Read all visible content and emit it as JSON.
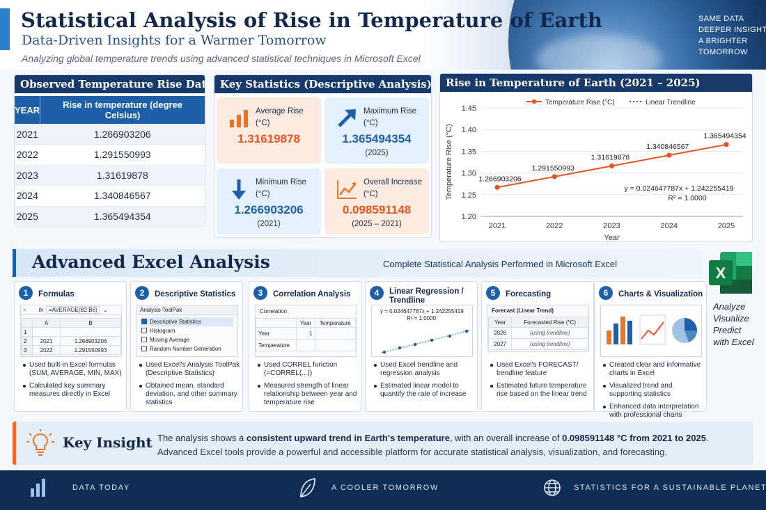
{
  "header": {
    "title": "Statistical Analysis of Rise in Temperature of Earth",
    "subtitle": "Data-Driven Insights for a Warmer Tomorrow",
    "tagline": "Analyzing global temperature trends using advanced statistical techniques in Microsoft Excel",
    "slogan": [
      "SAME DATA",
      "DEEPER INSIGHTS",
      "A BRIGHTER",
      "TOMORROW"
    ]
  },
  "observed": {
    "title": "Observed Temperature Rise Data",
    "col_year": "YEAR",
    "col_rise": "Rise in temperature (degree Celsius)",
    "rows": [
      {
        "year": "2021",
        "value": "1.266903206"
      },
      {
        "year": "2022",
        "value": "1.291550993"
      },
      {
        "year": "2023",
        "value": "1.31619878"
      },
      {
        "year": "2024",
        "value": "1.340846567"
      },
      {
        "year": "2025",
        "value": "1.365494354"
      }
    ]
  },
  "key_stats": {
    "title": "Key Statistics (Descriptive Analysis)",
    "average": {
      "label1": "Average Rise",
      "label2": "(°C)",
      "value": "1.31619878",
      "color": "#e8541e"
    },
    "maximum": {
      "label1": "Maximum Rise",
      "label2": "(°C)",
      "value": "1.365494354",
      "sub": "(2025)",
      "color": "#1d5fa8"
    },
    "minimum": {
      "label1": "Minimum Rise",
      "label2": "(°C)",
      "value": "1.266903206",
      "sub": "(2021)",
      "color": "#1d5fa8"
    },
    "increase": {
      "label1": "Overall Increase",
      "label2": "(°C)",
      "value": "0.098591148",
      "sub": "(2025 – 2021)",
      "color": "#e8541e"
    }
  },
  "chart_data": {
    "type": "line",
    "title": "Rise in Temperature of Earth (2021 – 2025)",
    "xlabel": "Year",
    "ylabel": "Temperature Rise (°C)",
    "x": [
      "2021",
      "2022",
      "2023",
      "2024",
      "2025"
    ],
    "series": [
      {
        "name": "Temperature Rise (°C)",
        "values": [
          1.266903206,
          1.291550993,
          1.31619878,
          1.340846567,
          1.365494354
        ],
        "color": "#e8541e"
      },
      {
        "name": "Linear Trendline",
        "values": [
          1.266903206,
          1.291550993,
          1.31619878,
          1.340846567,
          1.365494354
        ],
        "color": "#1b2a66"
      }
    ],
    "data_labels": [
      "1.266903206",
      "1.291550993",
      "1.31619878",
      "1.340846567",
      "1.365494354"
    ],
    "yticks": [
      "1.20",
      "1.25",
      "1.30",
      "1.35",
      "1.40",
      "1.45"
    ],
    "ylim": [
      1.2,
      1.45
    ],
    "grid": true,
    "legend": "top",
    "equation": "y = 0.024647787x + 1.242255419",
    "r2": "R² = 1.0000"
  },
  "advanced": {
    "title": "Advanced Excel Analysis",
    "subtitle": "Complete Statistical Analysis Performed in Microsoft Excel",
    "excel_text": [
      "Analyze",
      "Visualize",
      "Predict",
      "with Excel"
    ],
    "cards": [
      {
        "num": "1",
        "title": "Formulas",
        "mini": {
          "cancel": "×",
          "fx": "fx",
          "formula": "=AVERAGE(B2:B6)",
          "dropdown": "⌄",
          "col_a": "A",
          "col_b": "B",
          "rows": [
            [
              "1",
              "",
              ""
            ],
            [
              "2",
              "2021",
              "1.266903206"
            ],
            [
              "3",
              "2022",
              "1.291550993"
            ]
          ]
        },
        "bullets": [
          "Used built-in Excel formulas (SUM, AVERAGE, MIN, MAX)",
          "Calculated key summary measures directly in Excel"
        ]
      },
      {
        "num": "2",
        "title": "Descriptive Statistics",
        "mini": {
          "head": "Analysis ToolPak",
          "items": [
            "Descriptive Statistics",
            "Histogram",
            "Moving Average",
            "Random Number Generation"
          ]
        },
        "bullets": [
          "Used Excel's Analysis ToolPak (Descriptive Statistics)",
          "Obtained mean, standard deviation, and other summary statistics"
        ]
      },
      {
        "num": "3",
        "title": "Correlation Analysis",
        "mini": {
          "head": "Correlation",
          "col1": "Year",
          "col2": "Temperature",
          "r1": "Year",
          "r1v": "1",
          "r2": "Temperature"
        },
        "bullets": [
          "Used CORREL function (=CORREL(...))",
          "Measured strength of linear relationship between year and temperature rise"
        ]
      },
      {
        "num": "4",
        "title": "Linear Regression / Trendline",
        "mini": {
          "eq": "y = 0.024647787x + 1.242255419",
          "r2": "R² = 1.0000"
        },
        "bullets": [
          "Used Excel trendline and regression analysis",
          "Estimated linear model to quantify the rate of increase"
        ]
      },
      {
        "num": "5",
        "title": "Forecasting",
        "mini": {
          "head": "Forecast (Linear Trend)",
          "col1": "Year",
          "col2": "Forecasted Rise (°C)",
          "rows": [
            [
              "2026",
              "(using trendline)"
            ],
            [
              "2027",
              "(using trendline)"
            ]
          ]
        },
        "bullets": [
          "Used Excel's FORECAST/ trendline feature",
          "Estimated future temperature rise based on the linear trend"
        ]
      },
      {
        "num": "6",
        "title": "Charts & Visualization",
        "bullets": [
          "Created clear and informative charts in Excel",
          "Visualized trend and supporting statistics",
          "Enhanced data interpretation with professional charts"
        ]
      }
    ]
  },
  "insight": {
    "title": "Key Insight",
    "l1_a": "The analysis shows a ",
    "l1_b": "consistent upward trend in Earth's temperature",
    "l1_c": ", with an overall increase of ",
    "l1_d": "0.098591148 °C from 2021 to 2025",
    "l1_e": ".",
    "line2": "Advanced Excel tools provide a powerful and accessible platform for accurate statistical analysis, visualization, and forecasting."
  },
  "footer": {
    "item1": "DATA TODAY",
    "item2": "A COOLER TOMORROW",
    "item3": "STATISTICS FOR A SUSTAINABLE PLANET"
  },
  "icons": [
    "bar-chart-icon",
    "arrow-up-icon",
    "arrow-down-icon",
    "line-trend-icon",
    "excel-icon",
    "lightbulb-icon",
    "leaf-icon",
    "globe-icon"
  ]
}
